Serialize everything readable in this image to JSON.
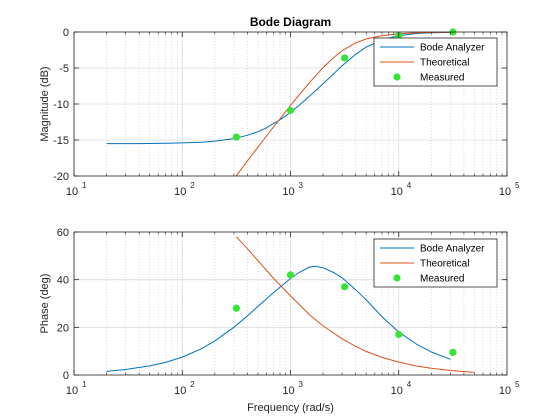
{
  "chart_data": [
    {
      "type": "line",
      "title": "Bode Diagram",
      "xlabel": "",
      "ylabel": "Magnitude (dB)",
      "xscale": "log",
      "xlim": [
        10,
        100000
      ],
      "ylim": [
        -20,
        0
      ],
      "x_ticks": [
        {
          "value": 10,
          "base": "10",
          "exp": "1"
        },
        {
          "value": 100,
          "base": "10",
          "exp": "2"
        },
        {
          "value": 1000,
          "base": "10",
          "exp": "3"
        },
        {
          "value": 10000,
          "base": "10",
          "exp": "4"
        },
        {
          "value": 100000,
          "base": "10",
          "exp": "5"
        }
      ],
      "y_ticks": [
        {
          "value": -20,
          "label": "-20"
        },
        {
          "value": -15,
          "label": "-15"
        },
        {
          "value": -10,
          "label": "-10"
        },
        {
          "value": -5,
          "label": "-5"
        },
        {
          "value": 0,
          "label": "0"
        }
      ],
      "grid": true,
      "legend_position": "top-right",
      "series": [
        {
          "name": "Bode Analyzer",
          "kind": "line",
          "color": "#0072bd",
          "x": [
            20,
            40,
            70,
            100,
            150,
            200,
            300,
            400,
            500,
            600,
            700,
            800,
            1000,
            1200,
            1500,
            2000,
            2500,
            3000,
            4000,
            5000,
            7000,
            10000,
            15000,
            20000,
            30000
          ],
          "y": [
            -15.5,
            -15.5,
            -15.45,
            -15.4,
            -15.3,
            -15.15,
            -14.8,
            -14.35,
            -13.85,
            -13.3,
            -12.7,
            -12.2,
            -11.15,
            -10.2,
            -8.9,
            -7.2,
            -5.8,
            -4.7,
            -3.1,
            -2.1,
            -1.1,
            -0.5,
            -0.2,
            -0.1,
            -0.05
          ]
        },
        {
          "name": "Theoretical",
          "kind": "line",
          "color": "#d95319",
          "x": [
            315,
            400,
            500,
            600,
            700,
            800,
            1000,
            1200,
            1500,
            2000,
            2500,
            3000,
            4000,
            5000,
            7000,
            10000,
            15000,
            20000,
            30000
          ],
          "y": [
            -20,
            -17.9,
            -16.0,
            -14.45,
            -13.15,
            -12.05,
            -10.2,
            -8.75,
            -7.0,
            -4.95,
            -3.55,
            -2.6,
            -1.5,
            -0.97,
            -0.5,
            -0.25,
            -0.11,
            -0.06,
            -0.03
          ]
        },
        {
          "name": "Measured",
          "kind": "marker",
          "color": "#33e633",
          "x": [
            316,
            1000,
            3162,
            10000,
            31623
          ],
          "y": [
            -14.6,
            -10.9,
            -3.6,
            -0.5,
            0
          ]
        }
      ]
    },
    {
      "type": "line",
      "title": "",
      "xlabel": "Frequency (rad/s)",
      "ylabel": "Phase (deg)",
      "xscale": "log",
      "xlim": [
        10,
        100000
      ],
      "ylim": [
        0,
        60
      ],
      "x_ticks": [
        {
          "value": 10,
          "base": "10",
          "exp": "1"
        },
        {
          "value": 100,
          "base": "10",
          "exp": "2"
        },
        {
          "value": 1000,
          "base": "10",
          "exp": "3"
        },
        {
          "value": 10000,
          "base": "10",
          "exp": "4"
        },
        {
          "value": 100000,
          "base": "10",
          "exp": "5"
        }
      ],
      "y_ticks": [
        {
          "value": 0,
          "label": "0"
        },
        {
          "value": 20,
          "label": "20"
        },
        {
          "value": 40,
          "label": "40"
        },
        {
          "value": 60,
          "label": "60"
        }
      ],
      "grid": true,
      "legend_position": "top-right",
      "series": [
        {
          "name": "Bode Analyzer",
          "kind": "line",
          "color": "#0072bd",
          "x": [
            20,
            30,
            50,
            70,
            100,
            150,
            200,
            300,
            400,
            500,
            700,
            1000,
            1200,
            1500,
            1700,
            2000,
            2500,
            3000,
            4000,
            5000,
            7000,
            10000,
            15000,
            20000,
            30000
          ],
          "y": [
            1.5,
            2.3,
            3.8,
            5.3,
            7.5,
            11.0,
            14.3,
            20.0,
            24.8,
            28.8,
            34.6,
            40.5,
            43.0,
            45.3,
            45.6,
            45.0,
            43.0,
            40.8,
            35.8,
            31.5,
            24.5,
            18.0,
            12.6,
            9.7,
            6.6
          ]
        },
        {
          "name": "Theoretical",
          "kind": "line",
          "color": "#d95319",
          "x": [
            316,
            400,
            500,
            700,
            1000,
            1500,
            2000,
            3000,
            4000,
            5000,
            7000,
            10000,
            15000,
            20000,
            30000,
            50000
          ],
          "y": [
            58,
            53,
            48,
            40.5,
            33.2,
            25.2,
            20.6,
            15.2,
            12.0,
            9.9,
            7.4,
            5.4,
            3.7,
            2.8,
            1.9,
            1.1
          ]
        },
        {
          "name": "Measured",
          "kind": "marker",
          "color": "#33e633",
          "x": [
            316,
            1000,
            3162,
            10000,
            31623
          ],
          "y": [
            28,
            42,
            37,
            17,
            9.5
          ]
        }
      ]
    }
  ]
}
